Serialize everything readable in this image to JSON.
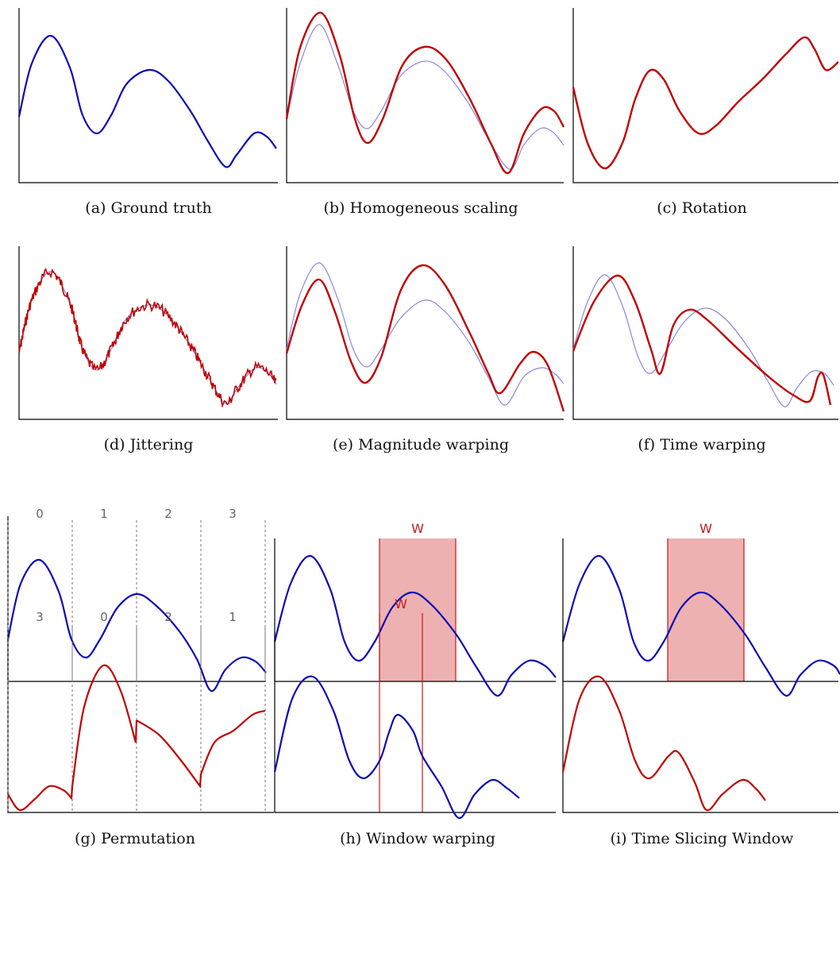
{
  "colors": {
    "primary": "#0b0bb5",
    "augmented": "#c00000",
    "reference": "#8888dd",
    "window_fill": "#eeb1b1",
    "window_line": "#c41a1a"
  },
  "panels": {
    "a": {
      "caption": "(a) Ground truth"
    },
    "b": {
      "caption": "(b) Homogeneous scaling"
    },
    "c": {
      "caption": "(c) Rotation"
    },
    "d": {
      "caption": "(d) Jittering"
    },
    "e": {
      "caption": "(e) Magnitude warping"
    },
    "f": {
      "caption": "(f) Time warping"
    },
    "g": {
      "caption": "(g) Permutation",
      "segments_top": [
        "0",
        "1",
        "2",
        "3"
      ],
      "segments_bottom": [
        "3",
        "0",
        "2",
        "1"
      ]
    },
    "h": {
      "caption": "(h) Window warping",
      "window_label": "W"
    },
    "i": {
      "caption": "(i) Time Slicing Window",
      "window_label": "W"
    }
  }
}
